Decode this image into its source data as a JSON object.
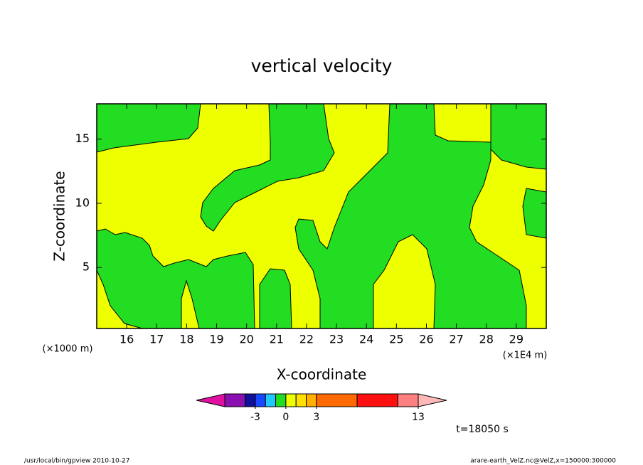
{
  "chart_data": {
    "type": "contour",
    "title": "vertical velocity",
    "xlabel": "X-coordinate",
    "ylabel": "Z-coordinate",
    "x_unit": "(×1E4 m)",
    "y_unit": "(×1000 m)",
    "xlim": [
      15,
      30
    ],
    "ylim": [
      0.25,
      17.75
    ],
    "xticks": [
      16,
      17,
      18,
      19,
      20,
      21,
      22,
      23,
      24,
      25,
      26,
      27,
      28,
      29
    ],
    "yticks": [
      5,
      10,
      15
    ],
    "colorbar": {
      "levels": [
        -6,
        -4,
        -3,
        -2,
        -1,
        0,
        1,
        2,
        3,
        7,
        11,
        13
      ],
      "colors": [
        "#8a10b0",
        "#10109a",
        "#1848ff",
        "#20c8ff",
        "#22dd22",
        "#eeff00",
        "#ffe000",
        "#ffb000",
        "#ff6a00",
        "#ff1010",
        "#ff8080"
      ],
      "under_color": "#e010a0",
      "over_color": "#ffb8b8",
      "ticks": [
        -3,
        0,
        3,
        13
      ]
    },
    "time_label": "t=18050 s",
    "footer_left": "/usr/local/bin/gpview   2010-10-27",
    "footer_right": "arare-earth_VelZ.nc@VelZ,x=150000:300000"
  }
}
